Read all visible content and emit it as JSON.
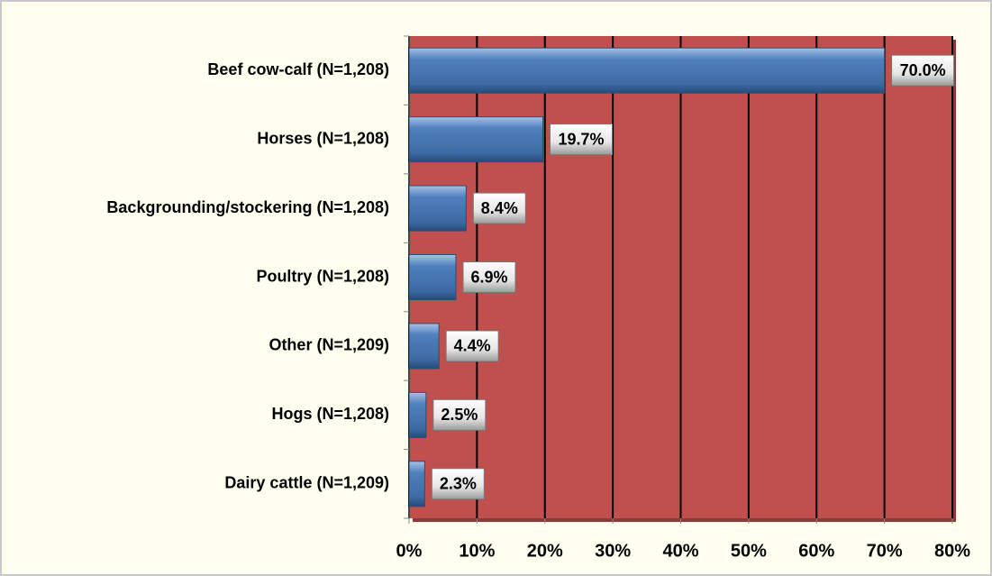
{
  "chart_data": {
    "type": "bar",
    "orientation": "horizontal",
    "categories": [
      "Beef cow-calf (N=1,208)",
      "Horses (N=1,208)",
      "Backgrounding/stockering (N=1,208)",
      "Poultry (N=1,208)",
      "Other (N=1,209)",
      "Hogs (N=1,208)",
      "Dairy cattle (N=1,209)"
    ],
    "values": [
      70.0,
      19.7,
      8.4,
      6.9,
      4.4,
      2.5,
      2.3
    ],
    "value_labels": [
      "70.0%",
      "19.7%",
      "8.4%",
      "6.9%",
      "4.4%",
      "2.5%",
      "2.3%"
    ],
    "color": "#4f81bd",
    "plot_color": "#c0504d",
    "xlim": [
      0,
      80
    ],
    "xticks": [
      {
        "value": 0,
        "label": "0%"
      },
      {
        "value": 10,
        "label": "10%"
      },
      {
        "value": 20,
        "label": "20%"
      },
      {
        "value": 30,
        "label": "30%"
      },
      {
        "value": 40,
        "label": "40%"
      },
      {
        "value": 50,
        "label": "50%"
      },
      {
        "value": 60,
        "label": "60%"
      },
      {
        "value": 70,
        "label": "70%"
      },
      {
        "value": 80,
        "label": "80%"
      }
    ],
    "grid": true
  }
}
